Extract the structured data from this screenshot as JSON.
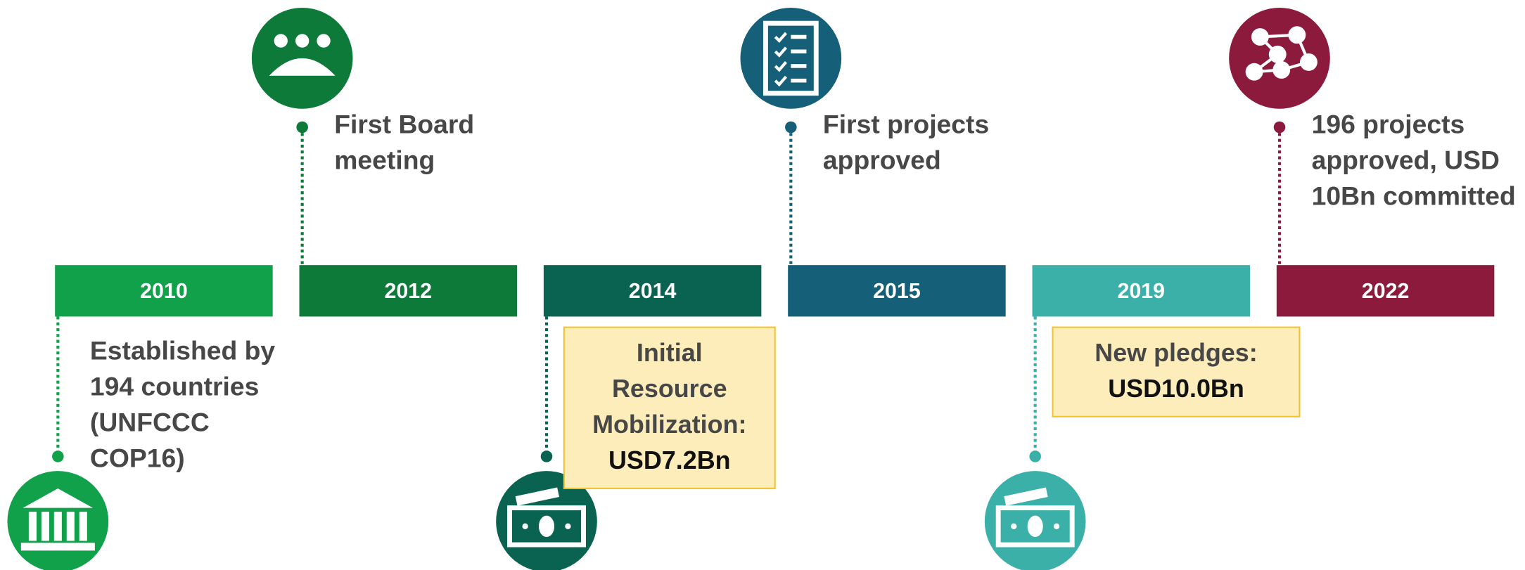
{
  "timeline": [
    {
      "year": "2010",
      "color": "#10a14a",
      "side": "below",
      "label": [
        "Established by",
        "194 countries",
        "(UNFCCC",
        "COP16)"
      ]
    },
    {
      "year": "2012",
      "color": "#0e7a3a",
      "side": "above",
      "label": [
        "First Board",
        "meeting"
      ]
    },
    {
      "year": "2014",
      "color": "#0a6350",
      "side": "below",
      "highlight": [
        "Initial",
        "Resource",
        "Mobilization:",
        "USD7.2Bn"
      ]
    },
    {
      "year": "2015",
      "color": "#155f78",
      "side": "above",
      "label": [
        "First projects",
        "approved"
      ]
    },
    {
      "year": "2019",
      "color": "#3bb0a8",
      "side": "below",
      "highlight": [
        "New pledges:",
        "USD10.0Bn"
      ]
    },
    {
      "year": "2022",
      "color": "#8b1a3c",
      "side": "above",
      "label": [
        "196 projects",
        "approved, USD",
        "10Bn committed"
      ]
    }
  ]
}
